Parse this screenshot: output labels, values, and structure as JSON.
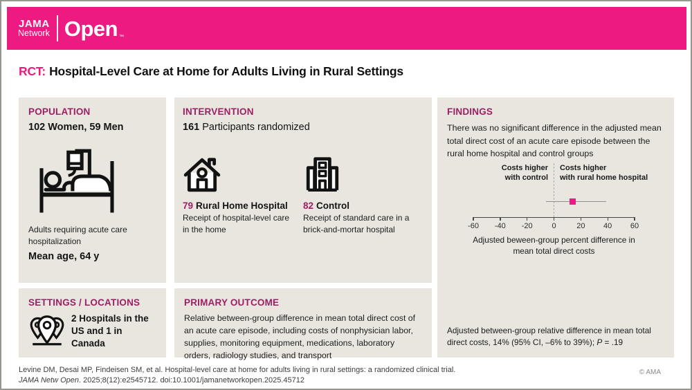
{
  "header": {
    "logo_jama": "JAMA",
    "logo_network": "Network",
    "logo_open": "Open",
    "logo_tm": "™"
  },
  "title": {
    "prefix": "RCT:",
    "text": "Hospital-Level Care at Home for Adults Living in Rural Settings"
  },
  "panels": {
    "population": {
      "heading": "POPULATION",
      "cohort": "102 Women, 59 Men",
      "icon": "hospital-bed-icon",
      "description": "Adults requiring acute care hospitalization",
      "mean_age": "Mean age, 64 y"
    },
    "intervention": {
      "heading": "INTERVENTION",
      "count": "161",
      "count_label": "Participants randomized",
      "groups": [
        {
          "icon": "home-icon",
          "n": "79",
          "name": "Rural Home Hospital",
          "description": "Receipt of hospital-level care in the home"
        },
        {
          "icon": "hospital-building-icon",
          "n": "82",
          "name": "Control",
          "description": "Receipt of standard care in a brick-and-mortar hospital"
        }
      ]
    },
    "findings": {
      "heading": "FINDINGS",
      "summary": "There was no significant difference in the adjusted mean total direct cost of an acute care episode between the rural home hospital and control groups",
      "note_text": "Adjusted between-group relative difference in mean total direct costs, 14% (95% CI, –6% to 39%); ",
      "note_p": "P",
      "note_p_value": " = .19"
    },
    "settings": {
      "heading": "SETTINGS / LOCATIONS",
      "icon": "map-pins-icon",
      "text": "2 Hospitals in the US and 1 in Canada"
    },
    "primary_outcome": {
      "heading": "PRIMARY OUTCOME",
      "text": "Relative between-group difference in mean total direct cost of an acute care episode, including costs of nonphysician labor, supplies, monitoring equipment, medications, laboratory orders, radiology studies, and transport"
    }
  },
  "chart_data": {
    "type": "scatter",
    "subtype": "forest-plot",
    "point_estimate": 14,
    "ci_lower": -6,
    "ci_upper": 39,
    "xlim": [
      -60,
      60
    ],
    "x_ticks": [
      -60,
      -40,
      -20,
      0,
      20,
      40,
      60
    ],
    "left_label": "Costs higher\nwith control",
    "right_label": "Costs higher\nwith rural home hospital",
    "xlabel": "Adjusted beween-group percent difference in\nmean total direct costs",
    "marker_color": "#EC1A81",
    "zero_reference_line": true,
    "legend_position": "none"
  },
  "footer": {
    "citation_line1": "Levine DM, Desai MP, Findeisen SM, et al. Hospital-level care at home for adults living in rural settings: a randomized clinical trial.",
    "citation_journal": "JAMA Netw Open",
    "citation_line2": ". 2025;8(12):e2545712. doi:10.1001/jamanetworkopen.2025.45712",
    "copyright": "© AMA"
  },
  "colors": {
    "banner_pink": "#EC1A81",
    "heading_magenta": "#9E2064",
    "panel_background": "#E8E6DF",
    "accent_pink": "#EC1A81"
  }
}
